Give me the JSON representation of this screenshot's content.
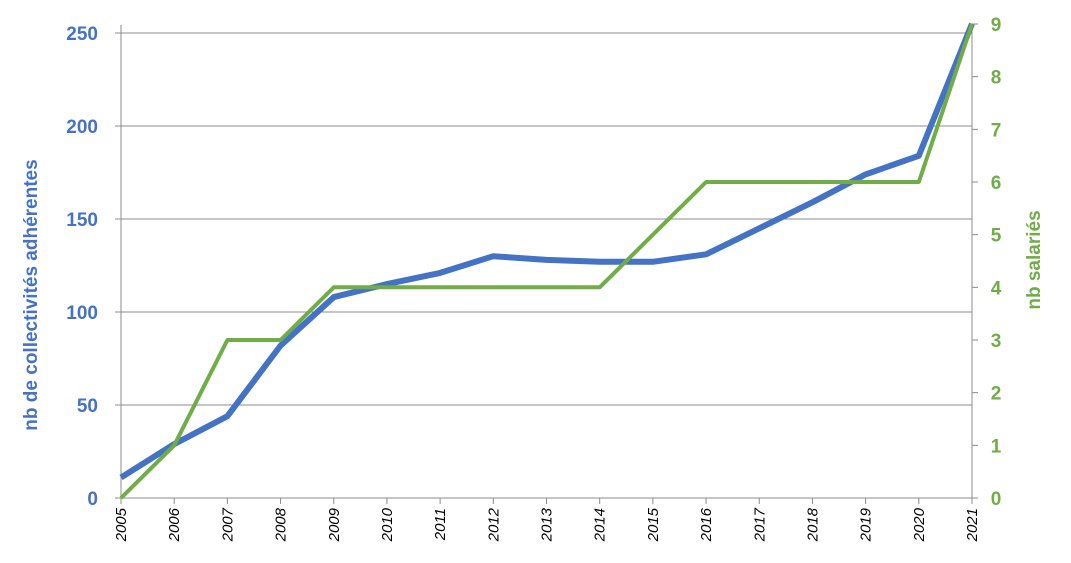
{
  "chart_data": {
    "type": "line",
    "x": [
      "2005",
      "2006",
      "2007",
      "2008",
      "2009",
      "2010",
      "2011",
      "2012",
      "2013",
      "2014",
      "2015",
      "2016",
      "2017",
      "2018",
      "2019",
      "2020",
      "2021"
    ],
    "series": [
      {
        "axis": "left",
        "color": "#4472C4",
        "values": [
          11,
          29,
          44,
          82,
          108,
          115,
          121,
          130,
          128,
          127,
          127,
          131,
          145,
          159,
          174,
          184,
          255
        ]
      },
      {
        "axis": "right",
        "color": "#70AD47",
        "values": [
          0,
          1,
          3,
          3,
          4,
          4,
          4,
          4,
          4,
          4,
          5,
          6,
          6,
          6,
          6,
          6,
          9
        ]
      }
    ],
    "ylabel": "nb de collectivités adhérentes",
    "y2label": "nb salariés",
    "ylim": [
      0,
      250
    ],
    "y2lim": [
      0,
      9
    ],
    "yticks": [
      "0",
      "50",
      "100",
      "150",
      "200",
      "250"
    ],
    "y2ticks": [
      "0",
      "1",
      "2",
      "3",
      "4",
      "5",
      "6",
      "7",
      "8",
      "9"
    ],
    "grid": true,
    "colors": {
      "left_axis": "#4472C4",
      "right_axis": "#70AD47",
      "grid": "#8C8C8C"
    }
  }
}
